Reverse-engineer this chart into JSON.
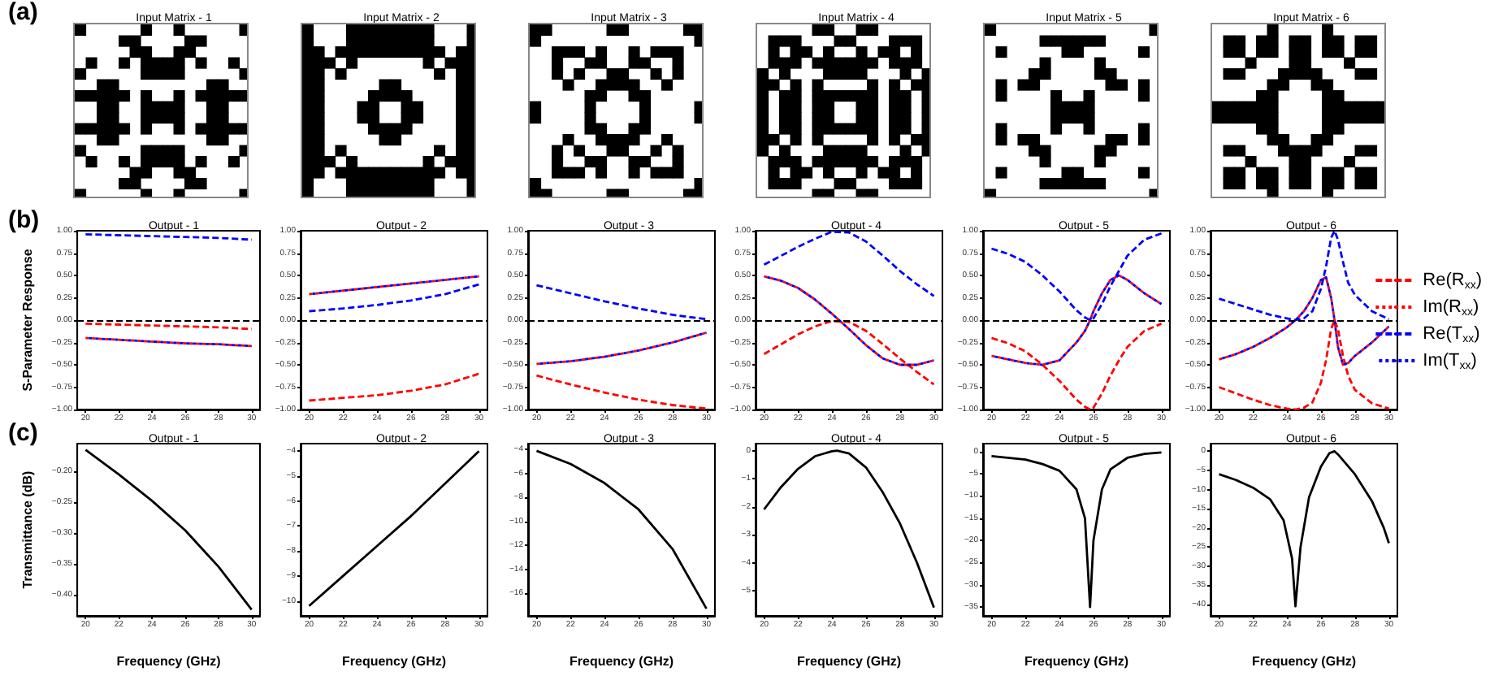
{
  "chart_data": [
    {
      "type": "other",
      "title": "Input Matrix - 1",
      "annotations": [
        "(a)"
      ]
    },
    {
      "type": "other",
      "title": "Input Matrix - 2"
    },
    {
      "type": "other",
      "title": "Input Matrix - 3"
    },
    {
      "type": "other",
      "title": "Input Matrix - 4"
    },
    {
      "type": "other",
      "title": "Input Matrix - 5"
    },
    {
      "type": "other",
      "title": "Input Matrix - 6"
    },
    {
      "type": "line",
      "title": "Output - 1",
      "ylabel": "S-Parameter Response",
      "annotations": [
        "(b)"
      ],
      "x": [
        20,
        22,
        24,
        26,
        28,
        30
      ],
      "xlim": [
        19.5,
        30.5
      ],
      "xticks": [
        20,
        22,
        24,
        26,
        28,
        30
      ],
      "ylim": [
        -1,
        1
      ],
      "yticks": [
        {
          "value": -1,
          "label": "−1.00"
        },
        {
          "value": -0.75,
          "label": "−0.75"
        },
        {
          "value": -0.5,
          "label": "−0.50"
        },
        {
          "value": -0.25,
          "label": "−0.25"
        },
        {
          "value": 0,
          "label": "0.00"
        },
        {
          "value": 0.25,
          "label": "0.25"
        },
        {
          "value": 0.5,
          "label": "0.50"
        },
        {
          "value": 0.75,
          "label": "0.75"
        },
        {
          "value": 1,
          "label": "1.00"
        }
      ],
      "ref_lines": [
        {
          "axis": "y",
          "value": 0,
          "color": "#000000",
          "line_style": "dashed"
        }
      ],
      "series": [
        {
          "color": "#ff0000",
          "line_style": "dashed",
          "values": [
            -0.04,
            -0.05,
            -0.06,
            -0.07,
            -0.08,
            -0.1
          ]
        },
        {
          "color": "#ff0000",
          "line_style": "dotted",
          "values": [
            -0.2,
            -0.22,
            -0.24,
            -0.26,
            -0.27,
            -0.29
          ]
        },
        {
          "color": "#0000ff",
          "line_style": "dashed",
          "values": [
            0.96,
            0.95,
            0.94,
            0.93,
            0.92,
            0.9
          ]
        },
        {
          "color": "#0000ff",
          "line_style": "dotted",
          "values": [
            -0.2,
            -0.22,
            -0.24,
            -0.26,
            -0.27,
            -0.29
          ]
        }
      ]
    },
    {
      "type": "line",
      "title": "Output - 2",
      "x": [
        20,
        22,
        24,
        26,
        28,
        30
      ],
      "xlim": [
        19.5,
        30.5
      ],
      "xticks": [
        20,
        22,
        24,
        26,
        28,
        30
      ],
      "ylim": [
        -1,
        1
      ],
      "yticks": [
        {
          "value": -1,
          "label": "−1.00"
        },
        {
          "value": -0.75,
          "label": "−0.75"
        },
        {
          "value": -0.5,
          "label": "−0.50"
        },
        {
          "value": -0.25,
          "label": "−0.25"
        },
        {
          "value": 0,
          "label": "0.00"
        },
        {
          "value": 0.25,
          "label": "0.25"
        },
        {
          "value": 0.5,
          "label": "0.50"
        },
        {
          "value": 0.75,
          "label": "0.75"
        },
        {
          "value": 1,
          "label": "1.00"
        }
      ],
      "ref_lines": [
        {
          "axis": "y",
          "value": 0,
          "color": "#000000",
          "line_style": "dashed"
        }
      ],
      "series": [
        {
          "color": "#ff0000",
          "line_style": "dashed",
          "values": [
            -0.9,
            -0.87,
            -0.84,
            -0.79,
            -0.72,
            -0.6
          ]
        },
        {
          "color": "#ff0000",
          "line_style": "dotted",
          "values": [
            0.29,
            0.33,
            0.37,
            0.41,
            0.45,
            0.49
          ]
        },
        {
          "color": "#0000ff",
          "line_style": "dashed",
          "values": [
            0.1,
            0.13,
            0.17,
            0.22,
            0.29,
            0.4
          ]
        },
        {
          "color": "#0000ff",
          "line_style": "dotted",
          "values": [
            0.29,
            0.33,
            0.37,
            0.41,
            0.45,
            0.49
          ]
        }
      ]
    },
    {
      "type": "line",
      "title": "Output - 3",
      "x": [
        20,
        22,
        24,
        26,
        28,
        30
      ],
      "xlim": [
        19.5,
        30.5
      ],
      "xticks": [
        20,
        22,
        24,
        26,
        28,
        30
      ],
      "ylim": [
        -1,
        1
      ],
      "yticks": [
        {
          "value": -1,
          "label": "−1.00"
        },
        {
          "value": -0.75,
          "label": "−0.75"
        },
        {
          "value": -0.5,
          "label": "−0.50"
        },
        {
          "value": -0.25,
          "label": "−0.25"
        },
        {
          "value": 0,
          "label": "0.00"
        },
        {
          "value": 0.25,
          "label": "0.25"
        },
        {
          "value": 0.5,
          "label": "0.50"
        },
        {
          "value": 0.75,
          "label": "0.75"
        },
        {
          "value": 1,
          "label": "1.00"
        }
      ],
      "ref_lines": [
        {
          "axis": "y",
          "value": 0,
          "color": "#000000",
          "line_style": "dashed"
        }
      ],
      "series": [
        {
          "color": "#ff0000",
          "line_style": "dashed",
          "values": [
            -0.62,
            -0.72,
            -0.81,
            -0.89,
            -0.95,
            -0.99
          ]
        },
        {
          "color": "#ff0000",
          "line_style": "dotted",
          "values": [
            -0.49,
            -0.46,
            -0.41,
            -0.34,
            -0.25,
            -0.14
          ]
        },
        {
          "color": "#0000ff",
          "line_style": "dashed",
          "values": [
            0.39,
            0.3,
            0.21,
            0.13,
            0.06,
            0.01
          ]
        },
        {
          "color": "#0000ff",
          "line_style": "dotted",
          "values": [
            -0.49,
            -0.46,
            -0.41,
            -0.34,
            -0.25,
            -0.14
          ]
        }
      ]
    },
    {
      "type": "line",
      "title": "Output - 4",
      "x": [
        20,
        21,
        22,
        23,
        24,
        25,
        26,
        27,
        28,
        29,
        30
      ],
      "xlim": [
        19.5,
        30.5
      ],
      "xticks": [
        20,
        22,
        24,
        26,
        28,
        30
      ],
      "ylim": [
        -1,
        1
      ],
      "yticks": [
        {
          "value": -1,
          "label": "−1.00"
        },
        {
          "value": -0.75,
          "label": "−0.75"
        },
        {
          "value": -0.5,
          "label": "−0.50"
        },
        {
          "value": -0.25,
          "label": "−0.25"
        },
        {
          "value": 0,
          "label": "0.00"
        },
        {
          "value": 0.25,
          "label": "0.25"
        },
        {
          "value": 0.5,
          "label": "0.50"
        },
        {
          "value": 0.75,
          "label": "0.75"
        },
        {
          "value": 1,
          "label": "1.00"
        }
      ],
      "ref_lines": [
        {
          "axis": "y",
          "value": 0,
          "color": "#000000",
          "line_style": "dashed"
        }
      ],
      "series": [
        {
          "color": "#ff0000",
          "line_style": "dashed",
          "values": [
            -0.38,
            -0.27,
            -0.16,
            -0.07,
            -0.01,
            -0.02,
            -0.12,
            -0.27,
            -0.43,
            -0.58,
            -0.72
          ]
        },
        {
          "color": "#ff0000",
          "line_style": "dotted",
          "values": [
            0.49,
            0.44,
            0.36,
            0.23,
            0.07,
            -0.1,
            -0.28,
            -0.43,
            -0.5,
            -0.5,
            -0.45
          ]
        },
        {
          "color": "#0000ff",
          "line_style": "dashed",
          "values": [
            0.62,
            0.72,
            0.82,
            0.91,
            0.99,
            0.98,
            0.88,
            0.72,
            0.55,
            0.4,
            0.27
          ]
        },
        {
          "color": "#0000ff",
          "line_style": "dotted",
          "values": [
            0.49,
            0.44,
            0.36,
            0.23,
            0.07,
            -0.1,
            -0.28,
            -0.43,
            -0.5,
            -0.5,
            -0.45
          ]
        }
      ]
    },
    {
      "type": "line",
      "title": "Output - 5",
      "x": [
        20,
        21,
        22,
        23,
        24,
        25,
        25.5,
        25.8,
        26,
        26.5,
        27,
        27.5,
        28,
        29,
        30
      ],
      "xlim": [
        19.5,
        30.5
      ],
      "xticks": [
        20,
        22,
        24,
        26,
        28,
        30
      ],
      "ylim": [
        -1,
        1
      ],
      "yticks": [
        {
          "value": -1,
          "label": "−1.00"
        },
        {
          "value": -0.75,
          "label": "−0.75"
        },
        {
          "value": -0.5,
          "label": "−0.50"
        },
        {
          "value": -0.25,
          "label": "−0.25"
        },
        {
          "value": 0,
          "label": "0.00"
        },
        {
          "value": 0.25,
          "label": "0.25"
        },
        {
          "value": 0.5,
          "label": "0.50"
        },
        {
          "value": 0.75,
          "label": "0.75"
        },
        {
          "value": 1,
          "label": "1.00"
        }
      ],
      "ref_lines": [
        {
          "axis": "y",
          "value": 0,
          "color": "#000000",
          "line_style": "dashed"
        }
      ],
      "series": [
        {
          "color": "#ff0000",
          "line_style": "dashed",
          "values": [
            -0.2,
            -0.26,
            -0.35,
            -0.5,
            -0.68,
            -0.89,
            -0.97,
            -1,
            -0.98,
            -0.82,
            -0.62,
            -0.45,
            -0.3,
            -0.12,
            -0.04
          ]
        },
        {
          "color": "#ff0000",
          "line_style": "dotted",
          "values": [
            -0.4,
            -0.44,
            -0.48,
            -0.5,
            -0.45,
            -0.25,
            -0.12,
            0,
            0.1,
            0.3,
            0.45,
            0.5,
            0.45,
            0.3,
            0.18
          ]
        },
        {
          "color": "#0000ff",
          "line_style": "dashed",
          "values": [
            0.8,
            0.74,
            0.65,
            0.5,
            0.32,
            0.11,
            0.03,
            0,
            0.02,
            0.18,
            0.38,
            0.55,
            0.72,
            0.9,
            0.97
          ]
        },
        {
          "color": "#0000ff",
          "line_style": "dotted",
          "values": [
            -0.4,
            -0.44,
            -0.48,
            -0.5,
            -0.45,
            -0.25,
            -0.12,
            0,
            0.1,
            0.3,
            0.45,
            0.5,
            0.45,
            0.3,
            0.18
          ]
        }
      ]
    },
    {
      "type": "line",
      "title": "Output - 6",
      "legend": "right",
      "x": [
        20,
        21,
        22,
        23,
        24,
        24.5,
        25,
        25.5,
        26,
        26.3,
        26.6,
        26.8,
        27,
        27.3,
        27.6,
        28,
        29,
        30
      ],
      "xlim": [
        19.5,
        30.5
      ],
      "xticks": [
        20,
        22,
        24,
        26,
        28,
        30
      ],
      "ylim": [
        -1,
        1
      ],
      "yticks": [
        {
          "value": -1,
          "label": "−1.00"
        },
        {
          "value": -0.75,
          "label": "−0.75"
        },
        {
          "value": -0.5,
          "label": "−0.50"
        },
        {
          "value": -0.25,
          "label": "−0.25"
        },
        {
          "value": 0,
          "label": "0.00"
        },
        {
          "value": 0.25,
          "label": "0.25"
        },
        {
          "value": 0.5,
          "label": "0.50"
        },
        {
          "value": 0.75,
          "label": "0.75"
        },
        {
          "value": 1,
          "label": "1.00"
        }
      ],
      "ref_lines": [
        {
          "axis": "y",
          "value": 0,
          "color": "#000000",
          "line_style": "dashed"
        }
      ],
      "series": [
        {
          "name": "Re(R$_{xx}$)",
          "color": "#ff0000",
          "line_style": "dashed",
          "values": [
            -0.75,
            -0.82,
            -0.89,
            -0.95,
            -0.99,
            -1,
            -0.98,
            -0.92,
            -0.7,
            -0.45,
            -0.1,
            0,
            -0.1,
            -0.4,
            -0.62,
            -0.78,
            -0.93,
            -0.99
          ]
        },
        {
          "name": "Im(R$_{xx}$)",
          "color": "#ff0000",
          "line_style": "dotted",
          "values": [
            -0.44,
            -0.38,
            -0.3,
            -0.2,
            -0.08,
            0,
            0.1,
            0.25,
            0.45,
            0.48,
            0.25,
            0,
            -0.3,
            -0.5,
            -0.48,
            -0.4,
            -0.25,
            -0.07
          ]
        },
        {
          "name": "Re(T$_{xx}$)",
          "color": "#0000ff",
          "line_style": "dashed",
          "values": [
            0.24,
            0.18,
            0.12,
            0.06,
            0.02,
            0,
            0.02,
            0.1,
            0.35,
            0.6,
            0.92,
            1,
            0.9,
            0.65,
            0.42,
            0.28,
            0.1,
            0.01
          ]
        },
        {
          "name": "Im(T$_{xx}$)",
          "color": "#0000ff",
          "line_style": "dotted",
          "values": [
            -0.44,
            -0.38,
            -0.3,
            -0.2,
            -0.08,
            0,
            0.1,
            0.25,
            0.45,
            0.48,
            0.25,
            0,
            -0.3,
            -0.5,
            -0.48,
            -0.4,
            -0.25,
            -0.07
          ]
        }
      ]
    },
    {
      "type": "line",
      "title": "Output - 1",
      "ylabel": "Transmittance (dB)",
      "xlabel": "Frequency (GHz)",
      "annotations": [
        "(c)"
      ],
      "x": [
        20,
        22,
        24,
        26,
        28,
        30
      ],
      "xlim": [
        19.5,
        30.5
      ],
      "xticks": [
        20,
        22,
        24,
        26,
        28,
        30
      ],
      "ylim": [
        -0.435,
        -0.155
      ],
      "yticks": [
        {
          "value": -0.4,
          "label": "−0.40"
        },
        {
          "value": -0.35,
          "label": "−0.35"
        },
        {
          "value": -0.3,
          "label": "−0.30"
        },
        {
          "value": -0.25,
          "label": "−0.25"
        },
        {
          "value": -0.2,
          "label": "−0.20"
        }
      ],
      "series": [
        {
          "color": "#000000",
          "values": [
            -0.165,
            -0.205,
            -0.248,
            -0.296,
            -0.355,
            -0.425
          ]
        }
      ]
    },
    {
      "type": "line",
      "title": "Output - 2",
      "xlabel": "Frequency (GHz)",
      "x": [
        20,
        22,
        24,
        26,
        28,
        30
      ],
      "xlim": [
        19.5,
        30.5
      ],
      "xticks": [
        20,
        22,
        24,
        26,
        28,
        30
      ],
      "ylim": [
        -10.6,
        -3.7
      ],
      "yticks": [
        {
          "value": -10,
          "label": "−10"
        },
        {
          "value": -9,
          "label": "−9"
        },
        {
          "value": -8,
          "label": "−8"
        },
        {
          "value": -7,
          "label": "−7"
        },
        {
          "value": -6,
          "label": "−6"
        },
        {
          "value": -5,
          "label": "−5"
        },
        {
          "value": -4,
          "label": "−4"
        }
      ],
      "series": [
        {
          "color": "#000000",
          "values": [
            -10.2,
            -9,
            -7.8,
            -6.6,
            -5.3,
            -4
          ]
        }
      ]
    },
    {
      "type": "line",
      "title": "Output - 3",
      "xlabel": "Frequency (GHz)",
      "x": [
        20,
        22,
        24,
        26,
        28,
        30
      ],
      "xlim": [
        19.5,
        30.5
      ],
      "xticks": [
        20,
        22,
        24,
        26,
        28,
        30
      ],
      "ylim": [
        -17.9,
        -3.5
      ],
      "yticks": [
        {
          "value": -16,
          "label": "−16"
        },
        {
          "value": -14,
          "label": "−14"
        },
        {
          "value": -12,
          "label": "−12"
        },
        {
          "value": -10,
          "label": "−10"
        },
        {
          "value": -8,
          "label": "−8"
        },
        {
          "value": -6,
          "label": "−6"
        },
        {
          "value": -4,
          "label": "−4"
        }
      ],
      "series": [
        {
          "color": "#000000",
          "values": [
            -4.1,
            -5.2,
            -6.8,
            -9,
            -12.3,
            -17.3
          ]
        }
      ]
    },
    {
      "type": "line",
      "title": "Output - 4",
      "xlabel": "Frequency (GHz)",
      "x": [
        20,
        21,
        22,
        23,
        24,
        24.3,
        25,
        26,
        27,
        28,
        29,
        30
      ],
      "xlim": [
        19.5,
        30.5
      ],
      "xticks": [
        20,
        22,
        24,
        26,
        28,
        30
      ],
      "ylim": [
        -5.9,
        0.25
      ],
      "yticks": [
        {
          "value": -5,
          "label": "−5"
        },
        {
          "value": -4,
          "label": "−4"
        },
        {
          "value": -3,
          "label": "−3"
        },
        {
          "value": -2,
          "label": "−2"
        },
        {
          "value": -1,
          "label": "−1"
        },
        {
          "value": 0,
          "label": "0"
        }
      ],
      "series": [
        {
          "color": "#000000",
          "values": [
            -2.1,
            -1.3,
            -0.65,
            -0.2,
            -0.02,
            0,
            -0.1,
            -0.6,
            -1.5,
            -2.6,
            -4,
            -5.6
          ]
        }
      ]
    },
    {
      "type": "line",
      "title": "Output - 5",
      "xlabel": "Frequency (GHz)",
      "x": [
        20,
        22,
        23,
        24,
        25,
        25.5,
        25.8,
        26,
        26.5,
        27,
        28,
        29,
        30
      ],
      "xlim": [
        19.5,
        30.5
      ],
      "xticks": [
        20,
        22,
        24,
        26,
        28,
        30
      ],
      "ylim": [
        -37,
        1.8
      ],
      "yticks": [
        {
          "value": -35,
          "label": "−35"
        },
        {
          "value": -30,
          "label": "−30"
        },
        {
          "value": -25,
          "label": "−25"
        },
        {
          "value": -20,
          "label": "−20"
        },
        {
          "value": -15,
          "label": "−15"
        },
        {
          "value": -10,
          "label": "−10"
        },
        {
          "value": -5,
          "label": "−5"
        },
        {
          "value": 0,
          "label": "0"
        }
      ],
      "series": [
        {
          "color": "#000000",
          "values": [
            -1,
            -1.8,
            -2.8,
            -4.3,
            -8.5,
            -15,
            -35,
            -20,
            -8.5,
            -4,
            -1.4,
            -0.5,
            -0.2
          ]
        }
      ]
    },
    {
      "type": "line",
      "title": "Output - 6",
      "xlabel": "Frequency (GHz)",
      "x": [
        20,
        21,
        22,
        23,
        23.8,
        24.3,
        24.5,
        24.8,
        25.3,
        26,
        26.5,
        26.8,
        27,
        28,
        29,
        29.7,
        30
      ],
      "xlim": [
        19.5,
        30.5
      ],
      "xticks": [
        20,
        22,
        24,
        26,
        28,
        30
      ],
      "ylim": [
        -43,
        2
      ],
      "yticks": [
        {
          "value": -40,
          "label": "−40"
        },
        {
          "value": -35,
          "label": "−35"
        },
        {
          "value": -30,
          "label": "−30"
        },
        {
          "value": -25,
          "label": "−25"
        },
        {
          "value": -20,
          "label": "−20"
        },
        {
          "value": -15,
          "label": "−15"
        },
        {
          "value": -10,
          "label": "−10"
        },
        {
          "value": -5,
          "label": "−5"
        },
        {
          "value": 0,
          "label": "0"
        }
      ],
      "series": [
        {
          "color": "#000000",
          "values": [
            -6,
            -7.5,
            -9.5,
            -12.5,
            -18,
            -28,
            -40.5,
            -25,
            -12,
            -4,
            -0.5,
            0,
            -0.8,
            -6,
            -13,
            -20,
            -24
          ]
        }
      ]
    }
  ]
}
